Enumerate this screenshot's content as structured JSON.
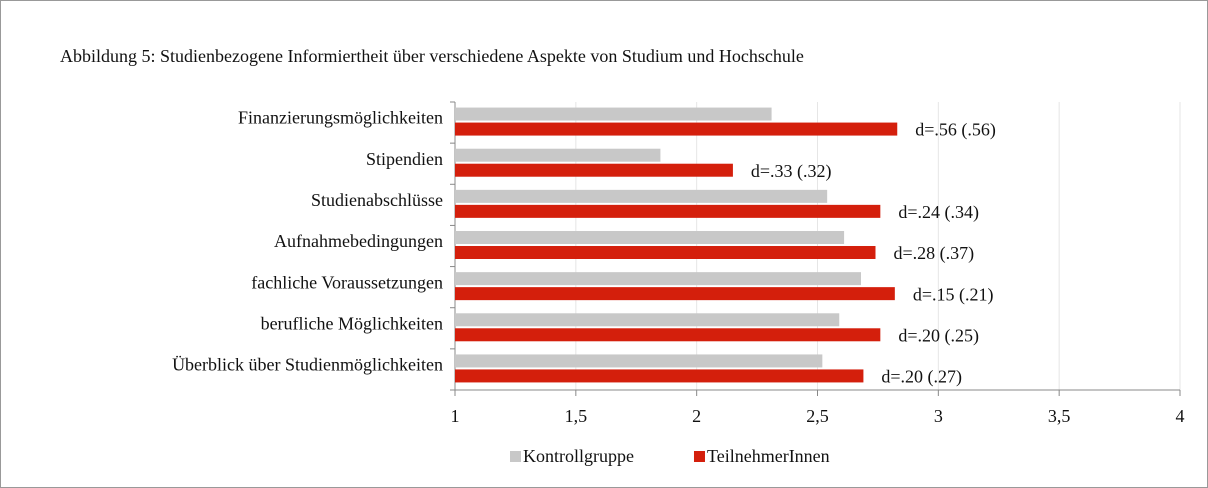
{
  "chart_data": {
    "type": "hbar",
    "title": "Abbildung 5: Studienbezogene Informiertheit über verschiedene Aspekte von Studium und Hochschule",
    "categories": [
      "Finanzierungsmöglichkeiten",
      "Stipendien",
      "Studienabschlüsse",
      "Aufnahmebedingungen",
      "fachliche Voraussetzungen",
      "berufliche Möglichkeiten",
      "Überblick über Studienmöglichkeiten"
    ],
    "series": [
      {
        "name": "Kontrollgruppe",
        "color": "#c8c8c8",
        "values": [
          2.31,
          1.85,
          2.54,
          2.61,
          2.68,
          2.59,
          2.52
        ]
      },
      {
        "name": "TeilnehmerInnen",
        "color": "#d41f0c",
        "values": [
          2.83,
          2.15,
          2.76,
          2.74,
          2.82,
          2.76,
          2.69
        ]
      }
    ],
    "annotations": [
      "d=.56 (.56)",
      "d=.33 (.32)",
      "d=.24 (.34)",
      "d=.28 (.37)",
      "d=.15 (.21)",
      "d=.20 (.25)",
      "d=.20 (.27)"
    ],
    "xlim": [
      1,
      4
    ],
    "xticks": [
      1,
      {
        "value": 1.5,
        "label": "1,5"
      },
      2,
      {
        "value": 2.5,
        "label": "2,5"
      },
      3,
      {
        "value": 3.5,
        "label": "3,5"
      },
      4
    ],
    "grid": true,
    "legend": "bottom"
  }
}
